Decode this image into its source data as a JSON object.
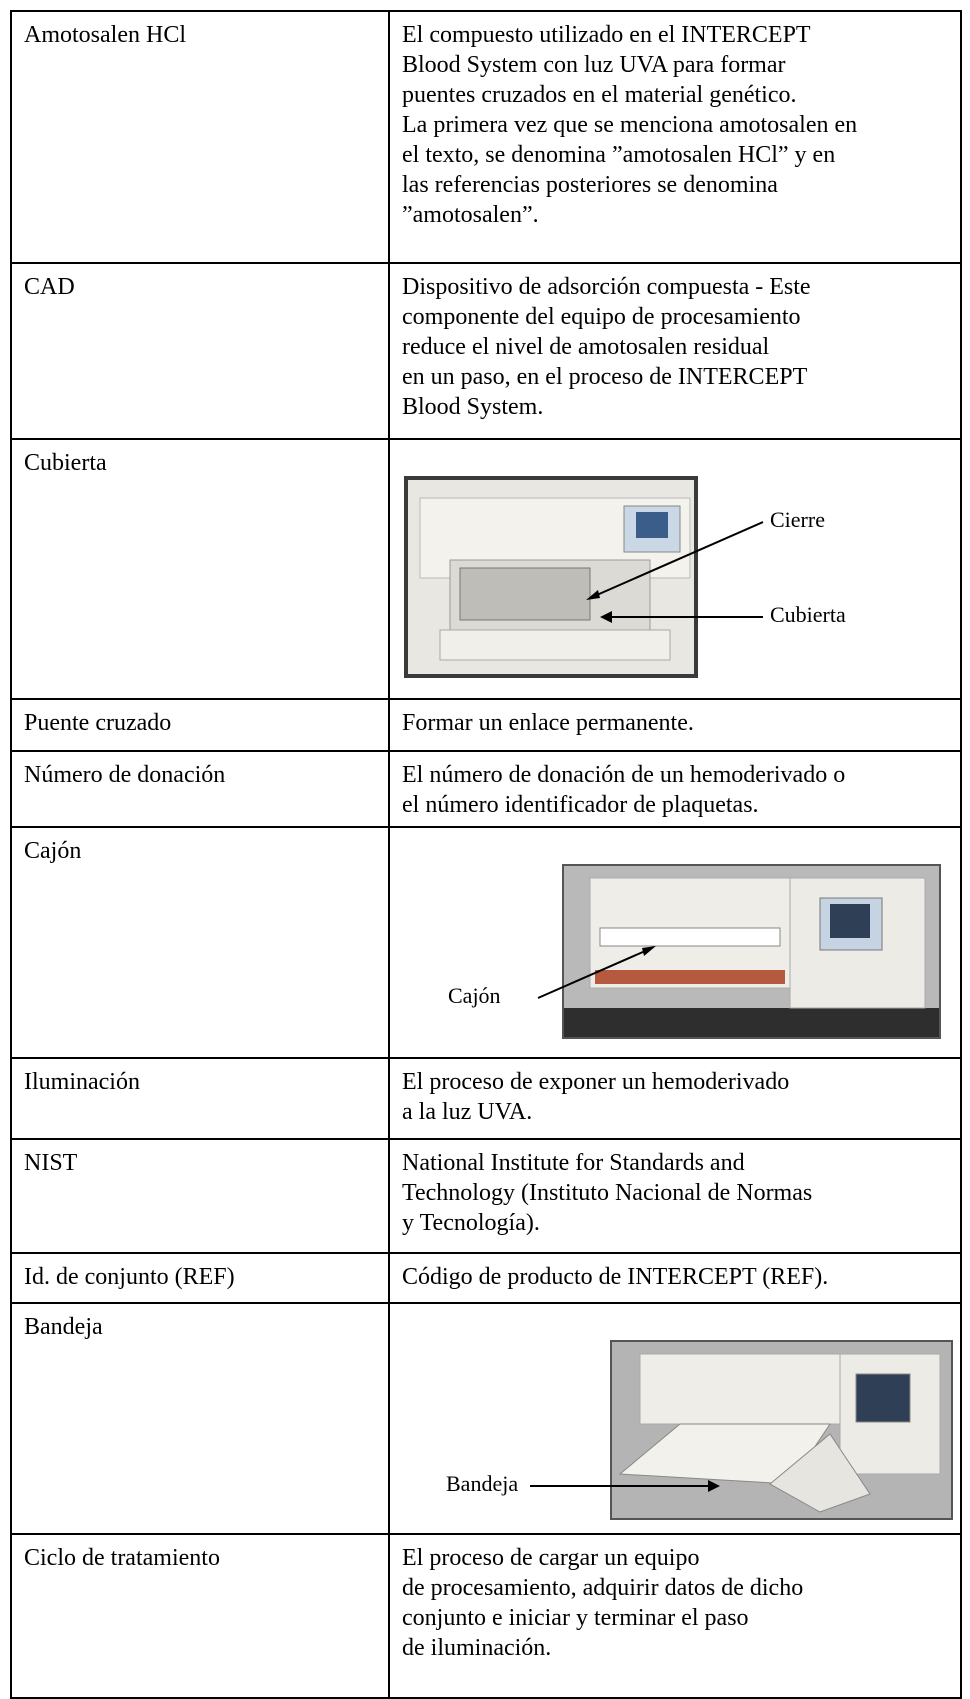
{
  "table": {
    "rows": [
      {
        "term": "Amotosalen HCl",
        "definition": "El compuesto utilizado en el INTERCEPT\nBlood System con luz UVA para formar\npuentes cruzados en el material genético.\nLa primera vez que se menciona amotosalen en\nel texto, se denomina ”amotosalen HCl” y en\nlas referencias posteriores se denomina\n”amotosalen”."
      },
      {
        "term": "CAD",
        "definition": "Dispositivo de adsorción compuesta - Este\ncomponente del equipo de procesamiento\nreduce el nivel de amotosalen residual\nen un paso, en el proceso de INTERCEPT\nBlood System."
      },
      {
        "term": "Cubierta",
        "image_labels": [
          "Cierre",
          "Cubierta"
        ]
      },
      {
        "term": "Puente cruzado",
        "definition": "Formar un enlace permanente."
      },
      {
        "term": "Número de donación",
        "definition": "El número de donación de un hemoderivado o\nel número identificador de plaquetas."
      },
      {
        "term": "Cajón",
        "image_labels": [
          "Cajón"
        ]
      },
      {
        "term": "Iluminación",
        "definition": "El proceso de exponer un hemoderivado\na la luz UVA."
      },
      {
        "term": "NIST",
        "definition": "National Institute for Standards and\nTechnology (Instituto Nacional de Normas\ny Tecnología)."
      },
      {
        "term": "Id. de conjunto (REF)",
        "definition": "Código de producto de INTERCEPT (REF)."
      },
      {
        "term": "Bandeja",
        "image_labels": [
          "Bandeja"
        ]
      },
      {
        "term": "Ciclo de tratamiento",
        "definition": "El proceso de cargar un equipo\nde procesamiento, adquirir datos de dicho\nconjunto e iniciar y terminar el paso\nde iluminación."
      }
    ]
  }
}
